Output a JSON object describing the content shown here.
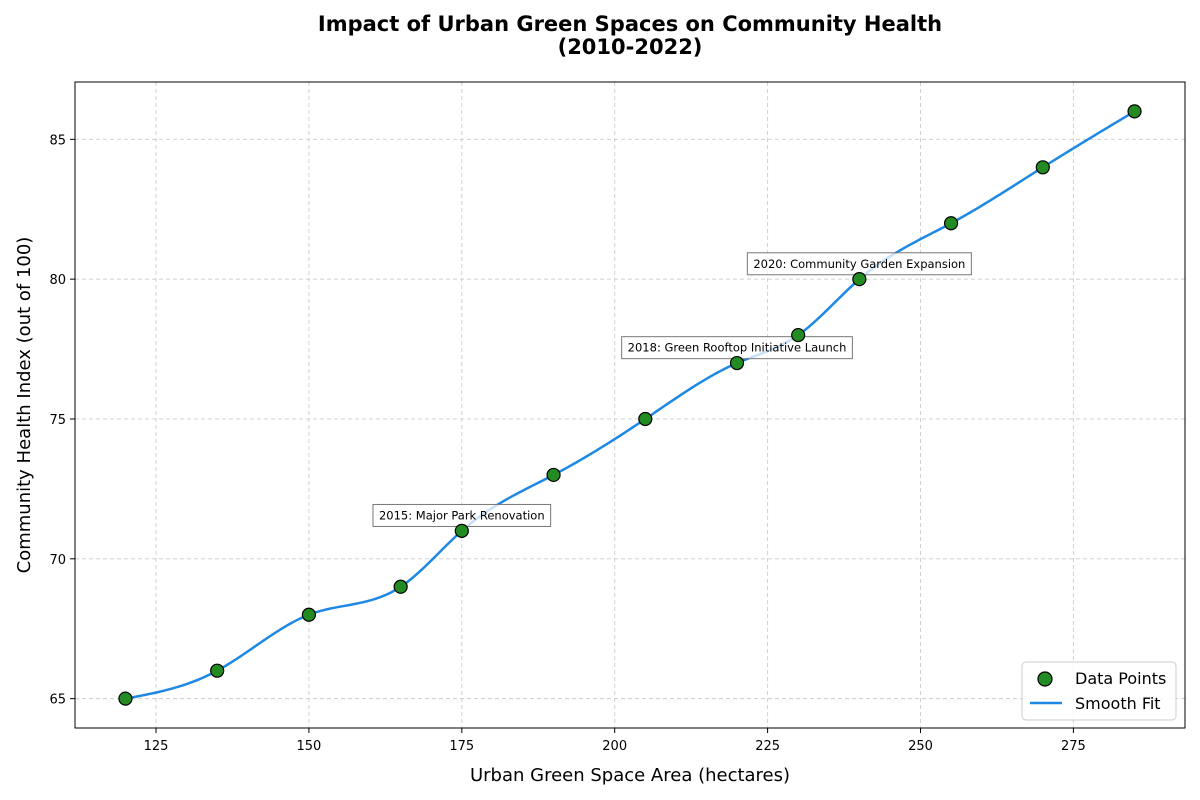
{
  "chart_data": {
    "type": "scatter",
    "title_line1": "Impact of Urban Green Spaces on Community Health",
    "title_line2": "(2010-2022)",
    "xlabel": "Urban Green Space Area (hectares)",
    "ylabel": "Community Health Index (out of 100)",
    "xlim": [
      111.75,
      293.25
    ],
    "ylim": [
      63.95,
      87.05
    ],
    "xticks": [
      125,
      150,
      175,
      200,
      225,
      250,
      275
    ],
    "yticks": [
      65,
      70,
      75,
      80,
      85
    ],
    "grid": true,
    "legend_position": "bottom-right",
    "series": [
      {
        "name": "Data Points",
        "kind": "scatter",
        "color": "#228B22",
        "x": [
          120,
          135,
          150,
          165,
          175,
          190,
          205,
          220,
          230,
          240,
          255,
          270,
          285
        ],
        "y": [
          65,
          66,
          68,
          69,
          71,
          73,
          75,
          77,
          78,
          80,
          82,
          84,
          86
        ]
      },
      {
        "name": "Smooth Fit",
        "kind": "line",
        "color": "#1E88E5"
      }
    ],
    "annotations": [
      {
        "text": "2015: Major Park Renovation",
        "x": 175,
        "y": 71
      },
      {
        "text": "2018: Green Rooftop Initiative Launch",
        "x": 220,
        "y": 77
      },
      {
        "text": "2020: Community Garden Expansion",
        "x": 240,
        "y": 80
      }
    ]
  }
}
